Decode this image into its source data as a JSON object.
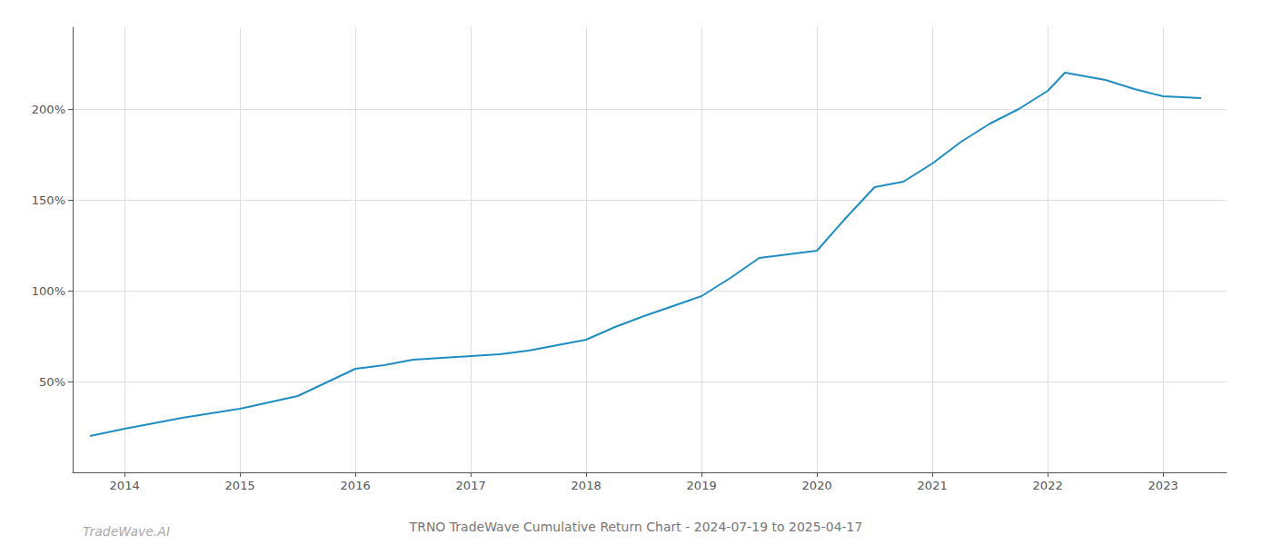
{
  "chart_data": {
    "type": "line",
    "title": "TRNO TradeWave Cumulative Return Chart - 2024-07-19 to 2025-04-17",
    "annotations": [
      "TradeWave.AI"
    ],
    "color": "#1f8dc0",
    "x": [
      2013.7,
      2014.0,
      2014.5,
      2015.0,
      2015.5,
      2016.0,
      2016.25,
      2016.5,
      2017.0,
      2017.25,
      2017.5,
      2018.0,
      2018.25,
      2018.5,
      2019.0,
      2019.25,
      2019.5,
      2019.75,
      2020.0,
      2020.25,
      2020.5,
      2020.75,
      2021.0,
      2021.25,
      2021.5,
      2021.75,
      2022.0,
      2022.15,
      2022.5,
      2022.75,
      2023.0,
      2023.33
    ],
    "values": [
      20,
      24,
      30,
      35,
      42,
      57,
      59,
      62,
      64,
      65,
      67,
      73,
      80,
      86,
      97,
      107,
      118,
      120,
      122,
      140,
      157,
      160,
      170,
      182,
      192,
      200,
      210,
      220,
      216,
      211,
      207,
      206
    ],
    "xlim": [
      2013.55,
      2023.55
    ],
    "xticks": [
      2014,
      2015,
      2016,
      2017,
      2018,
      2019,
      2020,
      2021,
      2022,
      2023
    ],
    "ylim": [
      0,
      245
    ],
    "yticks": [
      {
        "value": 50,
        "label": "50%"
      },
      {
        "value": 100,
        "label": "100%"
      },
      {
        "value": 150,
        "label": "150%"
      },
      {
        "value": 200,
        "label": "200%"
      }
    ],
    "grid": true
  }
}
